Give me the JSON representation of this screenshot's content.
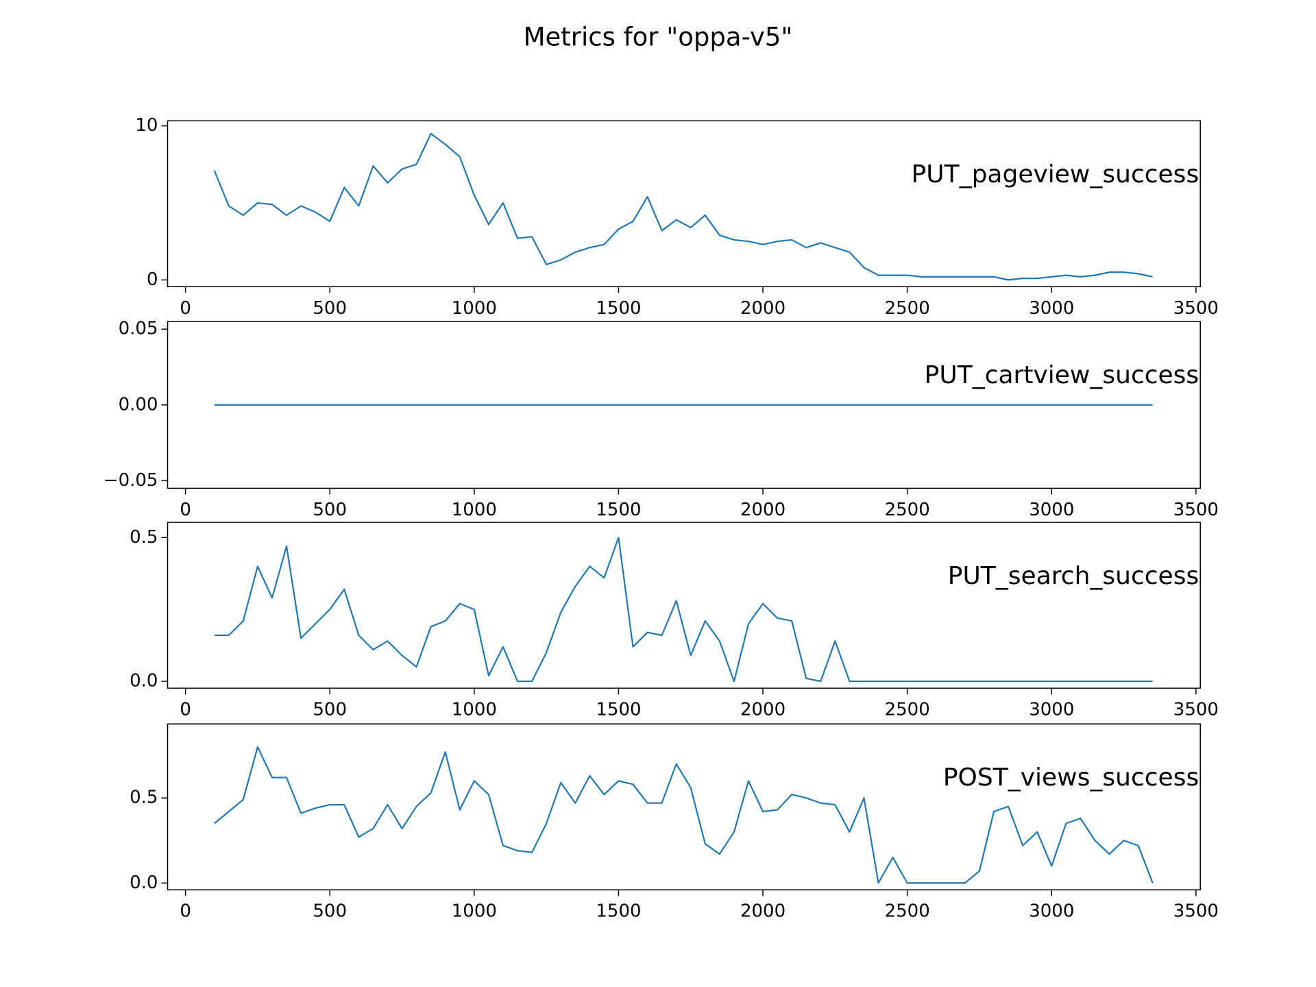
{
  "title": "Metrics for \"oppa-v5\"",
  "chart_data": [
    {
      "type": "line",
      "x": [
        100,
        150,
        200,
        250,
        300,
        350,
        400,
        450,
        500,
        550,
        600,
        650,
        700,
        750,
        800,
        850,
        900,
        950,
        1000,
        1050,
        1100,
        1150,
        1200,
        1250,
        1300,
        1350,
        1400,
        1450,
        1500,
        1550,
        1600,
        1650,
        1700,
        1750,
        1800,
        1850,
        1900,
        1950,
        2000,
        2050,
        2100,
        2150,
        2200,
        2250,
        2300,
        2350,
        2400,
        2450,
        2500,
        2550,
        2600,
        2650,
        2700,
        2750,
        2800,
        2850,
        2900,
        2950,
        3000,
        3050,
        3100,
        3150,
        3200,
        3250,
        3300,
        3350
      ],
      "series": [
        {
          "name": "PUT_pageview_success",
          "color": "#1f77b4",
          "values": [
            7.1,
            4.8,
            4.2,
            5.0,
            4.9,
            4.2,
            4.8,
            4.4,
            3.8,
            6.0,
            4.8,
            7.4,
            6.3,
            7.2,
            7.5,
            9.5,
            8.8,
            8.0,
            5.5,
            3.6,
            5.0,
            2.7,
            2.8,
            1.0,
            1.3,
            1.8,
            2.1,
            2.3,
            3.3,
            3.8,
            5.4,
            3.2,
            3.9,
            3.4,
            4.2,
            2.9,
            2.6,
            2.5,
            2.3,
            2.5,
            2.6,
            2.1,
            2.4,
            2.1,
            1.8,
            0.8,
            0.3,
            0.3,
            0.3,
            0.2,
            0.2,
            0.2,
            0.2,
            0.2,
            0.2,
            0.0,
            0.1,
            0.1,
            0.2,
            0.3,
            0.2,
            0.3,
            0.5,
            0.5,
            0.4,
            0.2
          ]
        }
      ],
      "xlim": [
        -62,
        3515
      ],
      "xticks": [
        0,
        500,
        1000,
        1500,
        2000,
        2500,
        3000,
        3500
      ],
      "ylim": [
        -0.44,
        10.33
      ],
      "yticks": [
        0,
        10
      ]
    },
    {
      "type": "line",
      "x": [
        100,
        150,
        200,
        250,
        300,
        350,
        400,
        450,
        500,
        550,
        600,
        650,
        700,
        750,
        800,
        850,
        900,
        950,
        1000,
        1050,
        1100,
        1150,
        1200,
        1250,
        1300,
        1350,
        1400,
        1450,
        1500,
        1550,
        1600,
        1650,
        1700,
        1750,
        1800,
        1850,
        1900,
        1950,
        2000,
        2050,
        2100,
        2150,
        2200,
        2250,
        2300,
        2350,
        2400,
        2450,
        2500,
        2550,
        2600,
        2650,
        2700,
        2750,
        2800,
        2850,
        2900,
        2950,
        3000,
        3050,
        3100,
        3150,
        3200,
        3250,
        3300,
        3350
      ],
      "series": [
        {
          "name": "PUT_cartview_success",
          "color": "#1f77b4",
          "values": [
            0,
            0,
            0,
            0,
            0,
            0,
            0,
            0,
            0,
            0,
            0,
            0,
            0,
            0,
            0,
            0,
            0,
            0,
            0,
            0,
            0,
            0,
            0,
            0,
            0,
            0,
            0,
            0,
            0,
            0,
            0,
            0,
            0,
            0,
            0,
            0,
            0,
            0,
            0,
            0,
            0,
            0,
            0,
            0,
            0,
            0,
            0,
            0,
            0,
            0,
            0,
            0,
            0,
            0,
            0,
            0,
            0,
            0,
            0,
            0,
            0,
            0,
            0,
            0,
            0,
            0
          ]
        }
      ],
      "xlim": [
        -62,
        3515
      ],
      "xticks": [
        0,
        500,
        1000,
        1500,
        2000,
        2500,
        3000,
        3500
      ],
      "ylim": [
        -0.055,
        0.055
      ],
      "yticks": [
        {
          "value": -0.05,
          "label": "−0.05"
        },
        {
          "value": 0,
          "label": "0.00"
        },
        {
          "value": 0.05,
          "label": "0.05"
        }
      ]
    },
    {
      "type": "line",
      "x": [
        100,
        150,
        200,
        250,
        300,
        350,
        400,
        450,
        500,
        550,
        600,
        650,
        700,
        750,
        800,
        850,
        900,
        950,
        1000,
        1050,
        1100,
        1150,
        1200,
        1250,
        1300,
        1350,
        1400,
        1450,
        1500,
        1550,
        1600,
        1650,
        1700,
        1750,
        1800,
        1850,
        1900,
        1950,
        2000,
        2050,
        2100,
        2150,
        2200,
        2250,
        2300,
        2350,
        2400,
        2450,
        2500,
        2550,
        2600,
        2650,
        2700,
        2750,
        2800,
        2850,
        2900,
        2950,
        3000,
        3050,
        3100,
        3150,
        3200,
        3250,
        3300,
        3350
      ],
      "series": [
        {
          "name": "PUT_search_success",
          "color": "#1f77b4",
          "values": [
            0.16,
            0.16,
            0.21,
            0.4,
            0.29,
            0.47,
            0.15,
            0.2,
            0.25,
            0.32,
            0.16,
            0.11,
            0.14,
            0.09,
            0.05,
            0.19,
            0.21,
            0.27,
            0.25,
            0.02,
            0.12,
            0,
            0,
            0.1,
            0.24,
            0.33,
            0.4,
            0.36,
            0.5,
            0.12,
            0.17,
            0.16,
            0.28,
            0.09,
            0.21,
            0.14,
            0,
            0.2,
            0.27,
            0.22,
            0.21,
            0.01,
            0,
            0.14,
            0,
            0,
            0,
            0,
            0,
            0,
            0,
            0,
            0,
            0,
            0,
            0,
            0,
            0,
            0,
            0,
            0,
            0,
            0,
            0,
            0,
            0
          ]
        }
      ],
      "xlim": [
        -62,
        3515
      ],
      "xticks": [
        0,
        500,
        1000,
        1500,
        2000,
        2500,
        3000,
        3500
      ],
      "ylim": [
        -0.024,
        0.553
      ],
      "yticks": [
        {
          "value": 0,
          "label": "0.0"
        },
        0.5
      ]
    },
    {
      "type": "line",
      "x": [
        100,
        150,
        200,
        250,
        300,
        350,
        400,
        450,
        500,
        550,
        600,
        650,
        700,
        750,
        800,
        850,
        900,
        950,
        1000,
        1050,
        1100,
        1150,
        1200,
        1250,
        1300,
        1350,
        1400,
        1450,
        1500,
        1550,
        1600,
        1650,
        1700,
        1750,
        1800,
        1850,
        1900,
        1950,
        2000,
        2050,
        2100,
        2150,
        2200,
        2250,
        2300,
        2350,
        2400,
        2450,
        2500,
        2550,
        2600,
        2650,
        2700,
        2750,
        2800,
        2850,
        2900,
        2950,
        3000,
        3050,
        3100,
        3150,
        3200,
        3250,
        3300,
        3350
      ],
      "series": [
        {
          "name": "POST_views_success",
          "color": "#1f77b4",
          "values": [
            0.35,
            0.42,
            0.49,
            0.8,
            0.62,
            0.62,
            0.41,
            0.44,
            0.46,
            0.46,
            0.27,
            0.32,
            0.46,
            0.32,
            0.45,
            0.53,
            0.77,
            0.43,
            0.6,
            0.52,
            0.22,
            0.19,
            0.18,
            0.35,
            0.59,
            0.47,
            0.63,
            0.52,
            0.6,
            0.58,
            0.47,
            0.47,
            0.7,
            0.56,
            0.23,
            0.17,
            0.3,
            0.6,
            0.42,
            0.43,
            0.52,
            0.5,
            0.47,
            0.46,
            0.3,
            0.5,
            0,
            0.15,
            0,
            0,
            0,
            0,
            0,
            0.07,
            0.42,
            0.45,
            0.22,
            0.3,
            0.1,
            0.35,
            0.38,
            0.25,
            0.17,
            0.25,
            0.22,
            0
          ]
        }
      ],
      "xlim": [
        -62,
        3515
      ],
      "xticks": [
        0,
        500,
        1000,
        1500,
        2000,
        2500,
        3000,
        3500
      ],
      "ylim": [
        -0.04,
        0.935
      ],
      "yticks": [
        {
          "value": 0,
          "label": "0.0"
        },
        0.5
      ]
    }
  ]
}
